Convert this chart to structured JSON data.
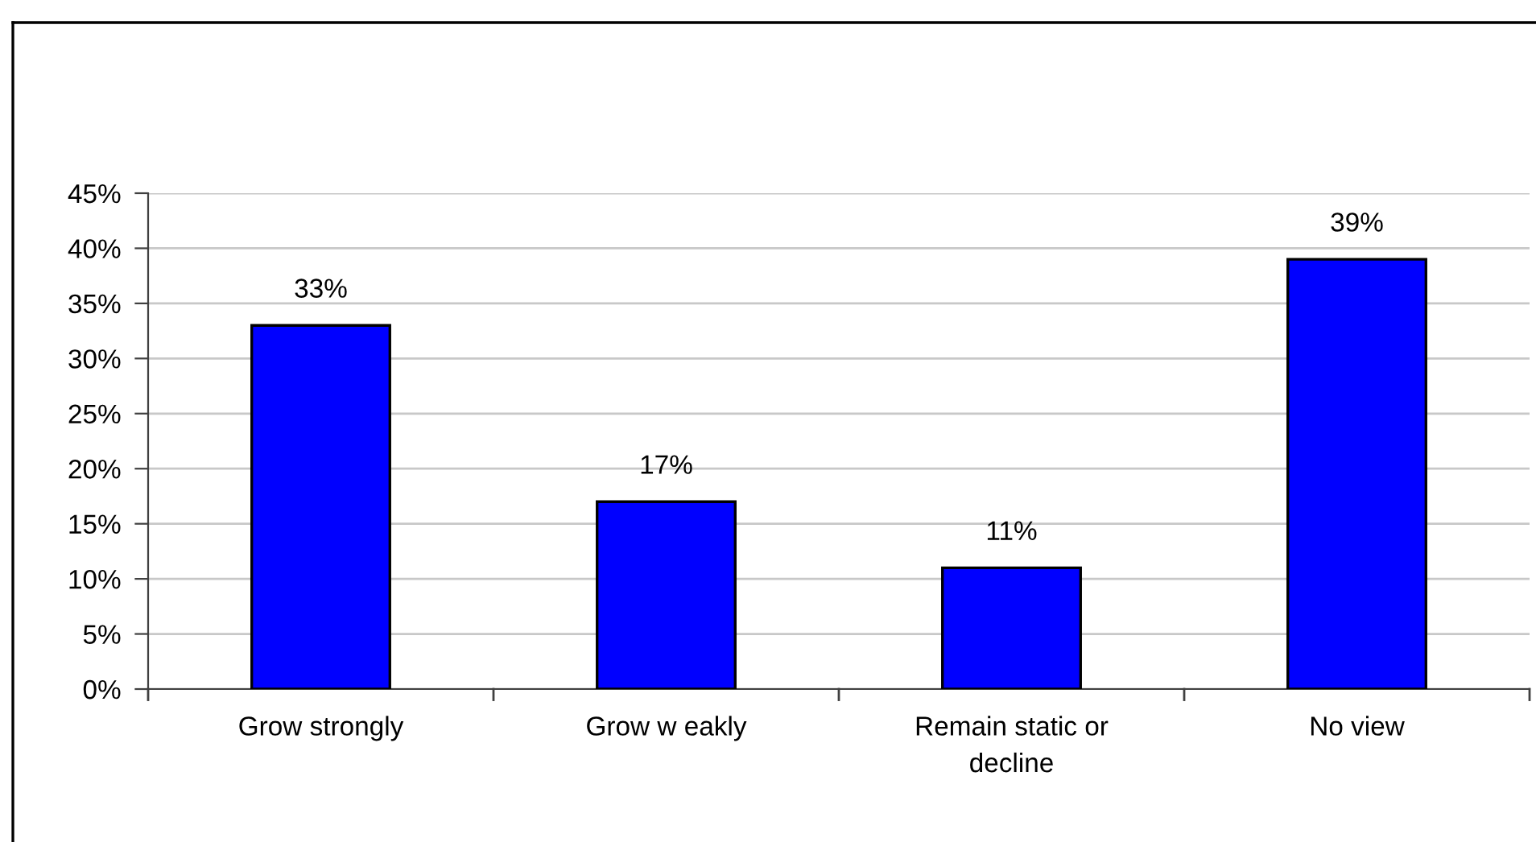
{
  "chart_data": {
    "type": "bar",
    "categories": [
      "Grow strongly",
      "Grow w eakly",
      "Remain static or\ndecline",
      "No view"
    ],
    "values": [
      33,
      17,
      11,
      39
    ],
    "color": "#0000ff",
    "value_labels": [
      "33%",
      "17%",
      "11%",
      "39%"
    ],
    "ylim": [
      0,
      45
    ],
    "yticks": [
      {
        "value": 0,
        "label": "0%"
      },
      {
        "value": 5,
        "label": "5%"
      },
      {
        "value": 10,
        "label": "10%"
      },
      {
        "value": 15,
        "label": "15%"
      },
      {
        "value": 20,
        "label": "20%"
      },
      {
        "value": 25,
        "label": "25%"
      },
      {
        "value": 30,
        "label": "30%"
      },
      {
        "value": 35,
        "label": "35%"
      },
      {
        "value": 40,
        "label": "40%"
      },
      {
        "value": 45,
        "label": "45%"
      }
    ],
    "grid": "y"
  }
}
